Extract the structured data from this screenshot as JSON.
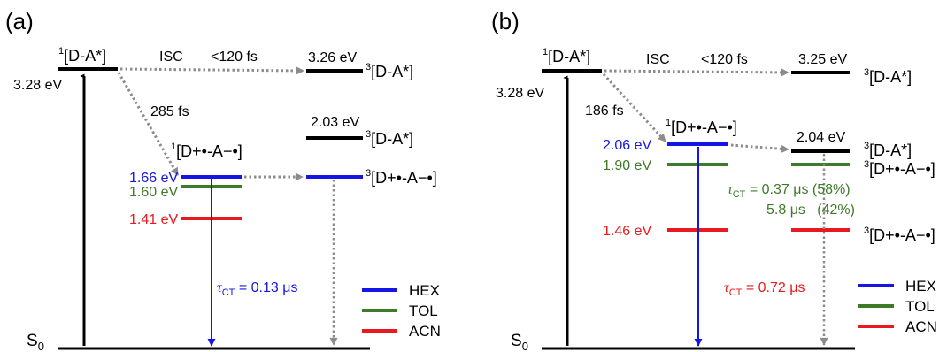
{
  "colors": {
    "hex": "#1515e6",
    "tol": "#3d7a2a",
    "acn": "#e8191f",
    "black": "#000000",
    "dotted": "#8c8c8c"
  },
  "panel_a": {
    "label": "(a)",
    "s0": "S",
    "s0_sub": "0",
    "singlet_sup": "1",
    "singlet_name": "[D-A*]",
    "singlet_energy": "3.28 eV",
    "isc": "ISC",
    "isc_time": "<120 fs",
    "triplet_energy": "3.26 eV",
    "triplet_sup": "3",
    "triplet_name": "[D-A*]",
    "cs_time": "285 fs",
    "cs_sup": "1",
    "cs_name": "[D+•-A−•]",
    "hex_energy": "1.66 eV",
    "tol_energy": "1.60 eV",
    "acn_energy": "1.41 eV",
    "t2_energy": "2.03 eV",
    "t2_sup": "3",
    "t2_name": "[D-A*]",
    "tcs_sup": "3",
    "tcs_name": "[D+•-A−•]",
    "tau_label": "τ",
    "tau_sub": "CT",
    "tau_value": " = 0.13 μs",
    "legend": [
      "HEX",
      "TOL",
      "ACN"
    ]
  },
  "panel_b": {
    "label": "(b)",
    "s0": "S",
    "s0_sub": "0",
    "singlet_sup": "1",
    "singlet_name": "[D-A*]",
    "singlet_energy": "3.28 eV",
    "isc": "ISC",
    "isc_time": "<120 fs",
    "triplet_energy": "3.25 eV",
    "triplet_sup": "3",
    "triplet_name": "[D-A*]",
    "cs_time": "186 fs",
    "cs_sup": "1",
    "cs_name": "[D+•-A−•]",
    "hex_energy": "2.06 eV",
    "tol_energy": "1.90 eV",
    "acn_energy": "1.46 eV",
    "t2_energy": "2.04 eV",
    "t2_sup": "3",
    "t2_name": "[D-A*]",
    "tcs_sup": "3",
    "tcs_name": "[D+•-A−•]",
    "tcs2_sup": "3",
    "tcs2_name": "[D+•-A−•]",
    "tau_tol_label": "τ",
    "tau_tol_sub": "CT",
    "tau_tol_value": " = 0.37 μs (58%)",
    "tau_tol_value2": "5.8 μs   (42%)",
    "tau_acn_label": "τ",
    "tau_acn_sub": "CT",
    "tau_acn_value": " = 0.72 μs",
    "legend": [
      "HEX",
      "TOL",
      "ACN"
    ]
  }
}
